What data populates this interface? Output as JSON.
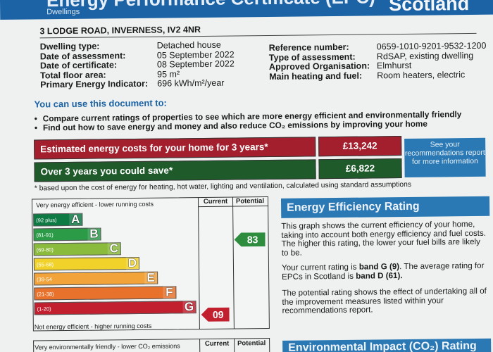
{
  "header": {
    "title": "Energy Performance Certificate (EPC)",
    "subtitle": "Dwellings",
    "country": "Scotland"
  },
  "address": "3 LODGE ROAD, INVERNESS, IV2 4NR",
  "details": [
    {
      "label": "Dwelling type:",
      "value": "Detached house"
    },
    {
      "label": "Date of assessment:",
      "value": "05 September 2022"
    },
    {
      "label": "Date of certificate:",
      "value": "08 September 2022"
    },
    {
      "label": "Total floor area:",
      "value": "95 m²"
    },
    {
      "label": "Primary Energy Indicator:",
      "value": "696 kWh/m²/year"
    }
  ],
  "reference": [
    {
      "label": "Reference number:",
      "value": "0659-1010-9201-9532-1200"
    },
    {
      "label": "Type of assessment:",
      "value": "RdSAP, existing dwelling"
    },
    {
      "label": "Approved Organisation:",
      "value": "Elmhurst"
    },
    {
      "label": "Main heating and fuel:",
      "value": "Room heaters, electric"
    }
  ],
  "use_title": "You can use this document to:",
  "bullets": [
    "Compare current ratings of properties to see which are more energy efficient and environmentally friendly",
    "Find out how to save energy and money and also reduce CO₂ emissions by improving your home"
  ],
  "costs": {
    "estimated_label": "Estimated energy costs for your home for 3 years*",
    "estimated_value": "£13,242",
    "save_label": "Over 3 years you could save*",
    "save_value": "£6,822",
    "see_box": "See your recommendations report for more information",
    "footnote": "* based upon the cost of energy for heating, hot water, lighting and ventilation, calculated using standard assumptions"
  },
  "rating_chart": {
    "top_label": "Very energy efficient - lower running costs",
    "bottom_label": "Not energy efficient - higher running costs",
    "col_current": "Current",
    "col_potential": "Potential",
    "bands": [
      {
        "range": "(92 plus)",
        "letter": "A",
        "color": "#0d7a43"
      },
      {
        "range": "(81-91)",
        "letter": "B",
        "color": "#2b9b48"
      },
      {
        "range": "(69-80)",
        "letter": "C",
        "color": "#8bbb3c"
      },
      {
        "range": "(55-68)",
        "letter": "D",
        "color": "#f0d22b"
      },
      {
        "range": "(39-54",
        "letter": "E",
        "color": "#f2a33a"
      },
      {
        "range": "(21-38)",
        "letter": "F",
        "color": "#e8722b"
      },
      {
        "range": "(1-20)",
        "letter": "G",
        "color": "#c2202f"
      }
    ],
    "current": "09",
    "potential": "83"
  },
  "eer": {
    "title": "Energy Efficiency Rating",
    "p1": "This graph shows the current efficiency of your home, taking into account both energy efficiency and fuel costs. The higher this rating, the lower your fuel bills are likely to be.",
    "p2_a": "Your current rating is ",
    "p2_b": "band G (9)",
    "p2_c": ". The average rating for EPCs in Scotland is ",
    "p2_d": "band D (61).",
    "p3": "The potential rating shows the effect of undertaking all of the improvement measures listed within your recommendations report."
  },
  "bottom": {
    "label": "Very environmentally friendly - lower CO₂ emissions",
    "col_current": "Current",
    "col_potential": "Potential",
    "title": "Environmental Impact (CO₂) Rating"
  }
}
